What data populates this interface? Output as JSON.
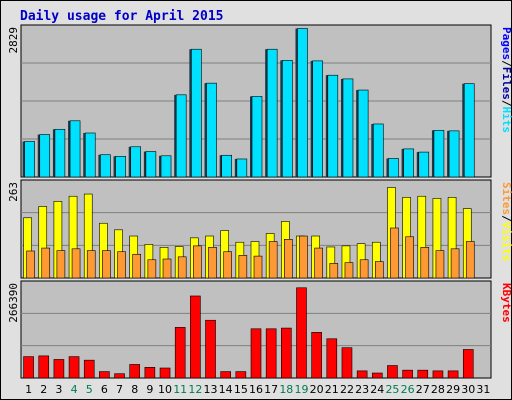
{
  "chart_data": {
    "type": "bar",
    "title": "Daily usage for April 2015",
    "colors": {
      "title": "#0000c8",
      "pages": "#0000ff",
      "files": "#0000a0",
      "hits": "#00e0ff",
      "visits": "#ffff00",
      "sites": "#ff9933",
      "kbytes": "#ff0000",
      "weekend": "#007a55",
      "panel_bg": "#c0c0c0",
      "frame_bg": "#e0e0e0"
    },
    "categories": [
      "1",
      "2",
      "3",
      "4",
      "5",
      "6",
      "7",
      "8",
      "9",
      "10",
      "11",
      "12",
      "13",
      "14",
      "15",
      "16",
      "17",
      "18",
      "19",
      "20",
      "21",
      "22",
      "23",
      "24",
      "25",
      "26",
      "27",
      "28",
      "29",
      "30",
      "31"
    ],
    "weekend_days": [
      "4",
      "5",
      "11",
      "12",
      "18",
      "19",
      "25",
      "26"
    ],
    "panels": [
      {
        "id": "hits",
        "ymax_label": "2829",
        "ylim": [
          0,
          2829
        ],
        "legend": [
          "Pages",
          "/",
          "Files",
          "/",
          "Hits"
        ],
        "series": [
          {
            "name": "Hits",
            "values": [
              670,
              800,
              900,
              1060,
              830,
              420,
              390,
              570,
              480,
              400,
              1550,
              2410,
              1770,
              410,
              340,
              1520,
              2410,
              2200,
              2800,
              2190,
              1920,
              1850,
              1640,
              1000,
              350,
              530,
              470,
              880,
              870,
              1760,
              0
            ]
          },
          {
            "name": "Files",
            "values": [
              660,
              790,
              890,
              1050,
              820,
              410,
              380,
              560,
              470,
              390,
              1540,
              2400,
              1760,
              400,
              330,
              1510,
              2400,
              2190,
              2780,
              2180,
              1910,
              1840,
              1630,
              990,
              340,
              520,
              460,
              870,
              860,
              1750,
              0
            ]
          }
        ]
      },
      {
        "id": "visits",
        "ymax_label": "263",
        "ylim": [
          0,
          263
        ],
        "legend": [
          "Sites",
          "/",
          "Visits"
        ],
        "series": [
          {
            "name": "Visits",
            "values": [
              165,
              196,
              210,
              224,
              230,
              150,
              132,
              115,
              92,
              84,
              86,
              110,
              115,
              130,
              98,
              100,
              122,
              155,
              115,
              115,
              85,
              88,
              94,
              98,
              248,
              221,
              224,
              218,
              221,
              190,
              0
            ]
          },
          {
            "name": "Sites",
            "values": [
              74,
              82,
              75,
              80,
              75,
              75,
              72,
              65,
              50,
              52,
              58,
              88,
              84,
              72,
              62,
              60,
              100,
              106,
              115,
              82,
              40,
              42,
              50,
              45,
              137,
              113,
              84,
              75,
              80,
              100,
              0
            ]
          }
        ]
      },
      {
        "id": "kbytes",
        "ymax_label": "266390",
        "ylim": [
          0,
          266390
        ],
        "legend": [
          "KBytes"
        ],
        "series": [
          {
            "name": "KBytes",
            "values": [
              60000,
              62000,
              52000,
              60000,
              50000,
              18000,
              12000,
              38000,
              30000,
              28000,
              142000,
              230000,
              162000,
              18000,
              18000,
              138000,
              138000,
              140000,
              253000,
              128000,
              110000,
              85000,
              20000,
              14000,
              35000,
              22000,
              22000,
              20000,
              20000,
              80000,
              0
            ]
          }
        ]
      }
    ]
  }
}
